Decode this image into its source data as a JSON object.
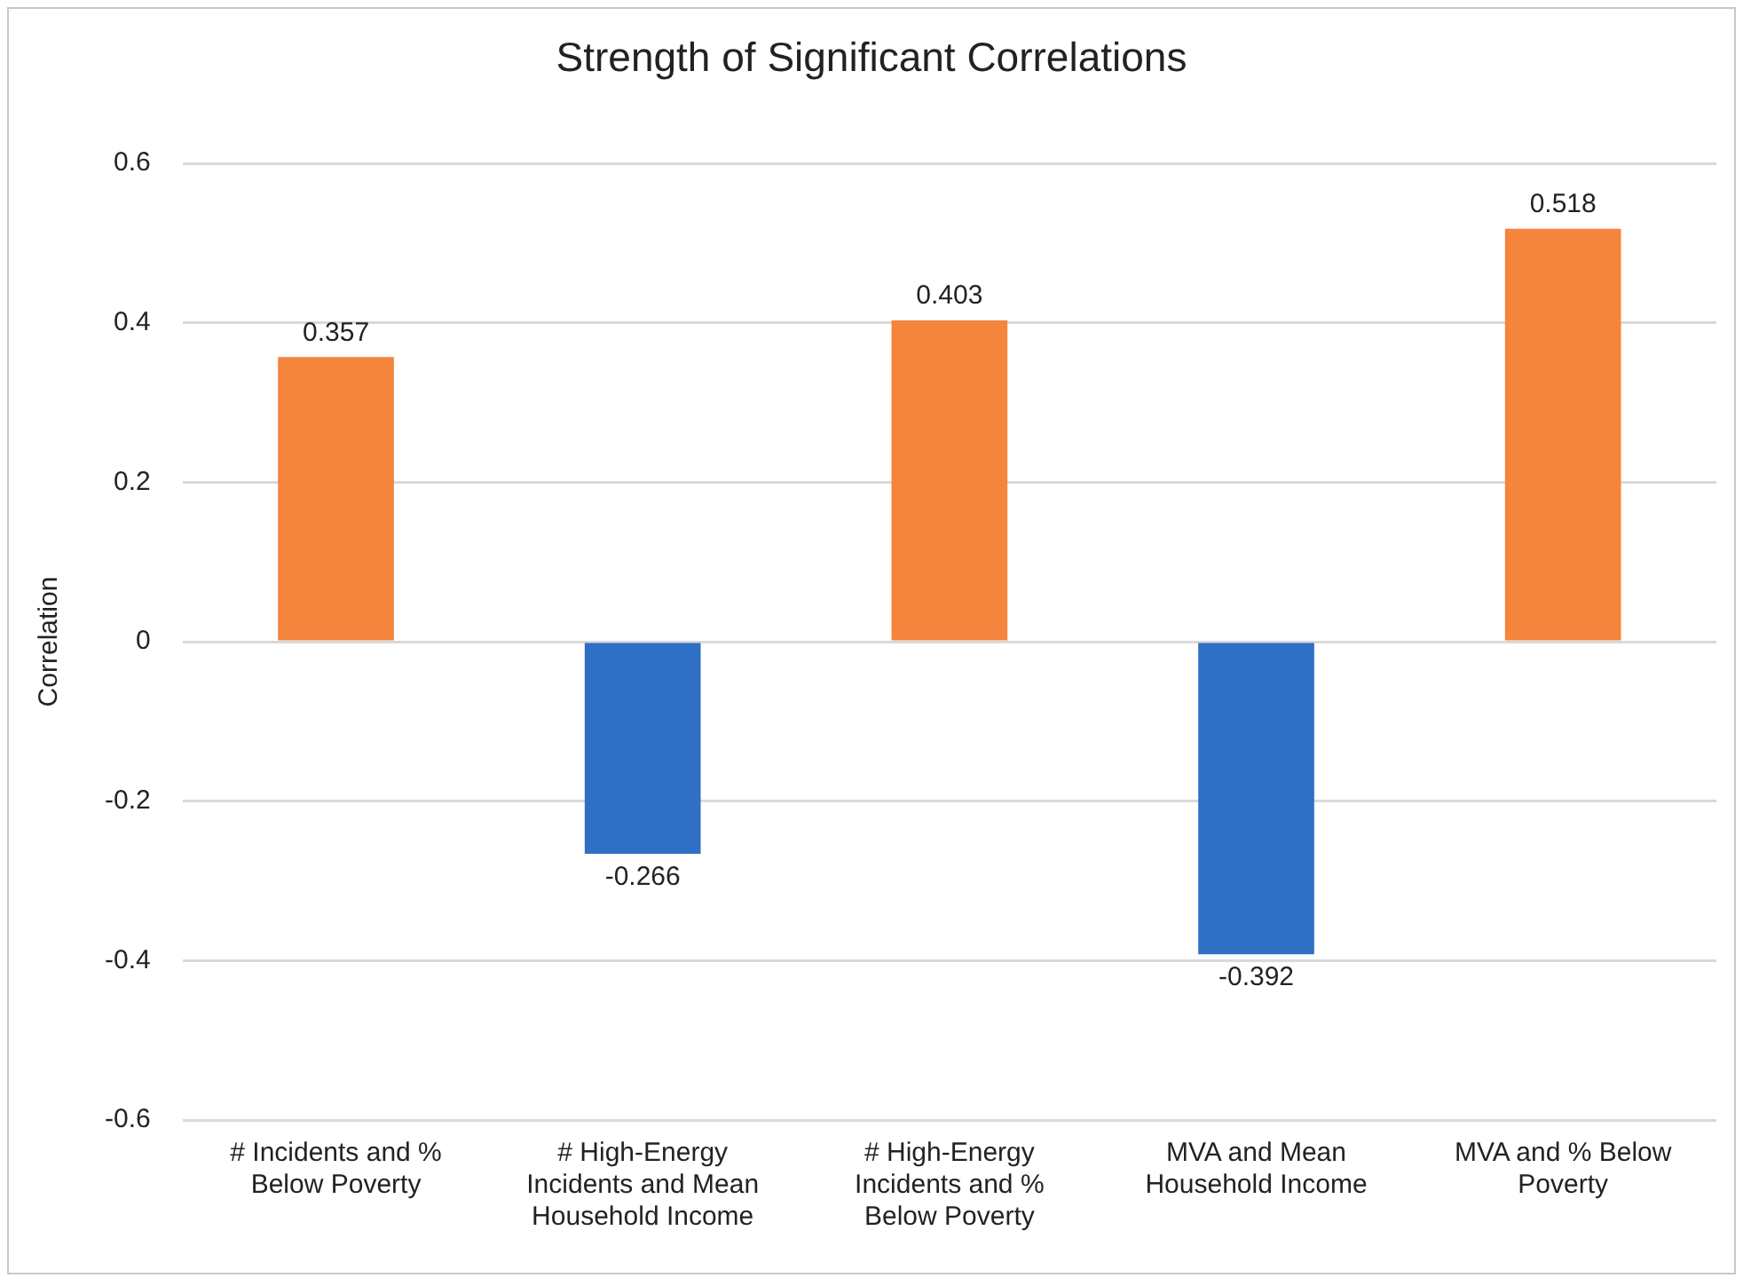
{
  "chart_data": {
    "type": "bar",
    "title": "Strength of Significant Correlations",
    "ylabel": "Correlation",
    "categories": [
      "# Incidents and % Below Poverty",
      "# High-Energy Incidents and Mean Household Income",
      "# High-Energy Incidents and % Below Poverty",
      "MVA and Mean Household Income",
      "MVA and % Below Poverty"
    ],
    "values": [
      0.357,
      -0.266,
      0.403,
      -0.392,
      0.518
    ],
    "colors": [
      "#f5843d",
      "#2f6fc5",
      "#f5843d",
      "#2f6fc5",
      "#f5843d"
    ],
    "ylim": [
      -0.6,
      0.6
    ],
    "yticks": [
      -0.6,
      -0.4,
      -0.2,
      0,
      0.2,
      0.4,
      0.6
    ],
    "grid": "y",
    "legend": false,
    "data_labels": true
  }
}
